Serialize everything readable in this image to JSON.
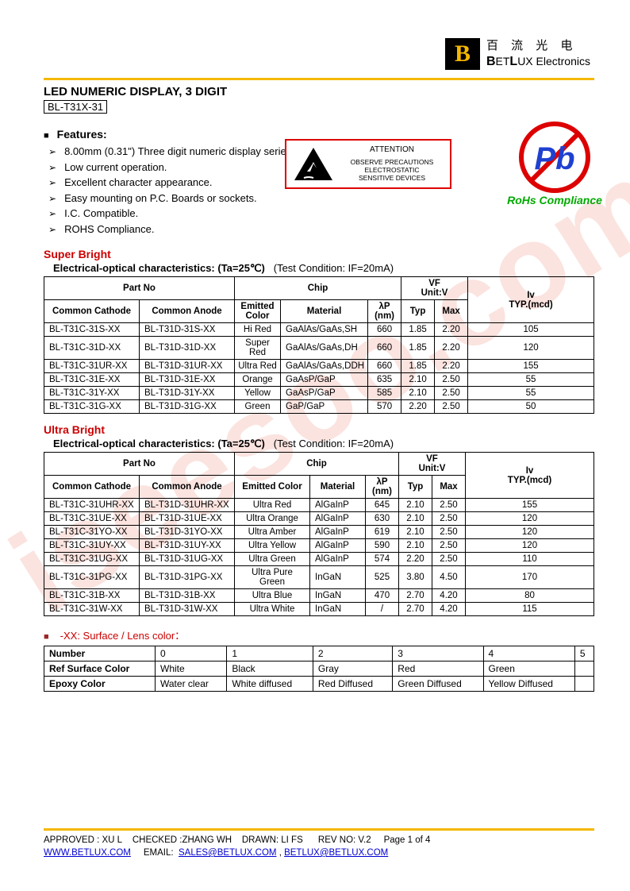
{
  "logo": {
    "letter": "B",
    "cn": "百 流 光 电",
    "en_bold": "B",
    "en_rest1": "ET",
    "en_bold2": "L",
    "en_rest2": "UX Electronics"
  },
  "colors": {
    "accent_yellow": "#f5b800",
    "red": "#c00",
    "link": "#0000d0",
    "green": "#0a0"
  },
  "title": "LED NUMERIC DISPLAY, 3 DIGIT",
  "part_box": "BL-T31X-31",
  "features_title": "Features:",
  "features": [
    "8.00mm (0.31\") Three digit numeric display series",
    "Low current operation.",
    "Excellent character appearance.",
    "Easy mounting on P.C. Boards or sockets.",
    "I.C. Compatible.",
    "ROHS Compliance."
  ],
  "esd": {
    "attention": "ATTENTION",
    "l1": "OBSERVE PRECAUTIONS",
    "l2": "ELECTROSTATIC",
    "l3": "SENSITIVE DEVICES"
  },
  "pb": {
    "symbol": "Pb",
    "label": "RoHs Compliance"
  },
  "sb": {
    "section": "Super Bright",
    "subtitle_b": "Electrical-optical characteristics: (Ta=25℃)",
    "subtitle_c": "(Test Condition: IF=20mA)",
    "headers": {
      "partno": "Part No",
      "chip": "Chip",
      "vf": "VF",
      "vf_unit": "Unit:V",
      "iv": "Iv",
      "iv_unit": "TYP.(mcd)",
      "cc": "Common Cathode",
      "ca": "Common Anode",
      "ecolor": "Emitted Color",
      "material": "Material",
      "lp": "λP",
      "nm": "(nm)",
      "typ": "Typ",
      "max": "Max"
    },
    "rows": [
      {
        "cc": "BL-T31C-31S-XX",
        "ca": "BL-T31D-31S-XX",
        "color": "Hi Red",
        "mat": "GaAlAs/GaAs,SH",
        "lp": "660",
        "typ": "1.85",
        "max": "2.20",
        "iv": "105"
      },
      {
        "cc": "BL-T31C-31D-XX",
        "ca": "BL-T31D-31D-XX",
        "color": "Super Red",
        "mat": "GaAlAs/GaAs,DH",
        "lp": "660",
        "typ": "1.85",
        "max": "2.20",
        "iv": "120"
      },
      {
        "cc": "BL-T31C-31UR-XX",
        "ca": "BL-T31D-31UR-XX",
        "color": "Ultra Red",
        "mat": "GaAlAs/GaAs,DDH",
        "lp": "660",
        "typ": "1.85",
        "max": "2.20",
        "iv": "155"
      },
      {
        "cc": "BL-T31C-31E-XX",
        "ca": "BL-T31D-31E-XX",
        "color": "Orange",
        "mat": "GaAsP/GaP",
        "lp": "635",
        "typ": "2.10",
        "max": "2.50",
        "iv": "55"
      },
      {
        "cc": "BL-T31C-31Y-XX",
        "ca": "BL-T31D-31Y-XX",
        "color": "Yellow",
        "mat": "GaAsP/GaP",
        "lp": "585",
        "typ": "2.10",
        "max": "2.50",
        "iv": "55"
      },
      {
        "cc": "BL-T31C-31G-XX",
        "ca": "BL-T31D-31G-XX",
        "color": "Green",
        "mat": "GaP/GaP",
        "lp": "570",
        "typ": "2.20",
        "max": "2.50",
        "iv": "50"
      }
    ]
  },
  "ub": {
    "section": "Ultra Bright",
    "subtitle_b": "Electrical-optical characteristics: (Ta=25℃)",
    "subtitle_c": "(Test Condition: IF=20mA)",
    "headers": {
      "partno": "Part No",
      "chip": "Chip",
      "vf": "VF",
      "vf_unit": "Unit:V",
      "iv": "Iv",
      "iv_unit": "TYP.(mcd)",
      "cc": "Common Cathode",
      "ca": "Common Anode",
      "ecolor": "Emitted Color",
      "material": "Material",
      "lp": "λP",
      "nm": "(nm)",
      "typ": "Typ",
      "max": "Max"
    },
    "rows": [
      {
        "cc": "BL-T31C-31UHR-XX",
        "ca": "BL-T31D-31UHR-XX",
        "color": "Ultra Red",
        "mat": "AlGaInP",
        "lp": "645",
        "typ": "2.10",
        "max": "2.50",
        "iv": "155"
      },
      {
        "cc": "BL-T31C-31UE-XX",
        "ca": "BL-T31D-31UE-XX",
        "color": "Ultra Orange",
        "mat": "AlGaInP",
        "lp": "630",
        "typ": "2.10",
        "max": "2.50",
        "iv": "120"
      },
      {
        "cc": "BL-T31C-31YO-XX",
        "ca": "BL-T31D-31YO-XX",
        "color": "Ultra Amber",
        "mat": "AlGaInP",
        "lp": "619",
        "typ": "2.10",
        "max": "2.50",
        "iv": "120"
      },
      {
        "cc": "BL-T31C-31UY-XX",
        "ca": "BL-T31D-31UY-XX",
        "color": "Ultra Yellow",
        "mat": "AlGaInP",
        "lp": "590",
        "typ": "2.10",
        "max": "2.50",
        "iv": "120"
      },
      {
        "cc": "BL-T31C-31UG-XX",
        "ca": "BL-T31D-31UG-XX",
        "color": "Ultra Green",
        "mat": "AlGaInP",
        "lp": "574",
        "typ": "2.20",
        "max": "2.50",
        "iv": "110"
      },
      {
        "cc": "BL-T31C-31PG-XX",
        "ca": "BL-T31D-31PG-XX",
        "color": "Ultra Pure Green",
        "mat": "InGaN",
        "lp": "525",
        "typ": "3.80",
        "max": "4.50",
        "iv": "170"
      },
      {
        "cc": "BL-T31C-31B-XX",
        "ca": "BL-T31D-31B-XX",
        "color": "Ultra Blue",
        "mat": "InGaN",
        "lp": "470",
        "typ": "2.70",
        "max": "4.20",
        "iv": "80"
      },
      {
        "cc": "BL-T31C-31W-XX",
        "ca": "BL-T31D-31W-XX",
        "color": "Ultra White",
        "mat": "InGaN",
        "lp": "/",
        "typ": "2.70",
        "max": "4.20",
        "iv": "115"
      }
    ]
  },
  "lens": {
    "note": "-XX: Surface / Lens color：",
    "h_number": "Number",
    "h_surface": "Ref Surface Color",
    "h_epoxy": "Epoxy Color",
    "cols": [
      "0",
      "1",
      "2",
      "3",
      "4",
      "5"
    ],
    "surface": [
      "White",
      "Black",
      "Gray",
      "Red",
      "Green",
      ""
    ],
    "epoxy": [
      "Water clear",
      "White diffused",
      "Red Diffused",
      "Green Diffused",
      "Yellow Diffused",
      ""
    ]
  },
  "footer": {
    "line1_a": "APPROVED : XU L",
    "line1_b": "CHECKED  :ZHANG WH",
    "line1_c": "DRAWN:  LI FS",
    "line1_d": "REV  NO:  V.2",
    "line1_e": "Page 1 of 4",
    "url": "WWW.BETLUX.COM",
    "email_label": "EMAIL:",
    "email1": "SALES@BETLUX.COM",
    "email2": "BETLUX@BETLUX.COM"
  },
  "watermark": "iseesoo.com"
}
